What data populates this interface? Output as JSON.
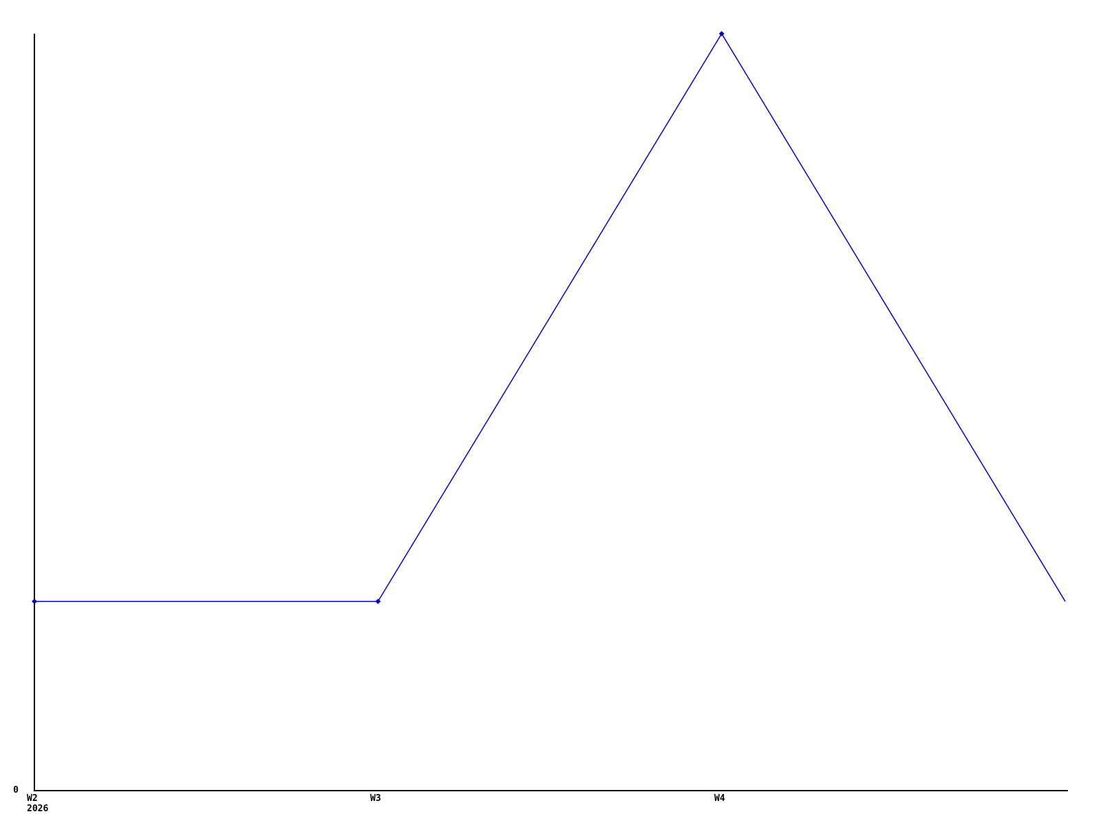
{
  "chart_data": {
    "type": "line",
    "title": "",
    "x_tick_labels": [
      "W2",
      "W3",
      "W4"
    ],
    "x_axis_year_label": "2026",
    "y_tick_labels": [
      "0"
    ],
    "categories": [
      "W2",
      "W3",
      "W4",
      ""
    ],
    "values": [
      1,
      1,
      4,
      1
    ],
    "ylim": [
      0,
      4
    ],
    "xlabel": "",
    "ylabel": "",
    "grid": "off",
    "legend_position": "none",
    "marker_shape": "filled-diamond",
    "markers_shown": [
      true,
      true,
      true,
      false
    ],
    "colors": {
      "line": "#0000cc",
      "marker": "#0000bb",
      "axis": "#000000",
      "text": "#000000",
      "background": "#ffffff"
    }
  }
}
